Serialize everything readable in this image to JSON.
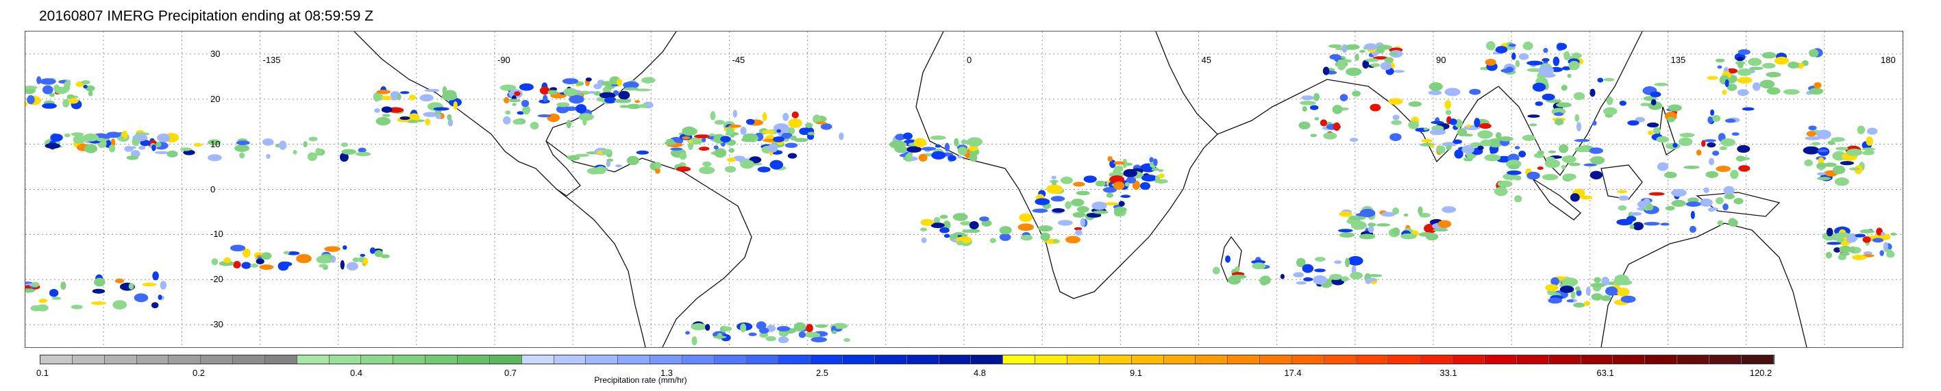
{
  "title": "20160807 IMERG Precipitation ending at 08:59:59 Z",
  "map": {
    "lon_labels": [
      "-135",
      "-90",
      "-45",
      "0",
      "45",
      "90",
      "135",
      "180"
    ],
    "lat_labels": [
      "30",
      "20",
      "10",
      "0",
      "-10",
      "-20",
      "-30"
    ],
    "lon_range": [
      -180,
      180
    ],
    "lat_range": [
      -35,
      35
    ],
    "grid": "dotted",
    "coastline_color": "#000000"
  },
  "colorbar": {
    "title": "Precipitation rate (mm/hr)",
    "tick_labels": [
      "0.1",
      "0.2",
      "0.4",
      "0.7",
      "1.3",
      "2.5",
      "4.8",
      "9.1",
      "17.4",
      "33.1",
      "63.1",
      "120.2"
    ],
    "colors": [
      "#c8c8c8",
      "#bcbcbc",
      "#b2b2b2",
      "#a8a8a8",
      "#9e9e9e",
      "#959595",
      "#8c8c8c",
      "#838383",
      "#a8e6a8",
      "#99e099",
      "#8cd98c",
      "#7fd17f",
      "#72c972",
      "#66c066",
      "#5ab85a",
      "#c8d8ff",
      "#b4c8ff",
      "#a0b8ff",
      "#8ca8ff",
      "#7898ff",
      "#6488ff",
      "#5078ff",
      "#3c68ff",
      "#1e50ff",
      "#0a3cf5",
      "#0032e6",
      "#0028d2",
      "#0020c0",
      "#0018aa",
      "#001496",
      "#ffff00",
      "#ffee00",
      "#ffdd00",
      "#ffcc00",
      "#ffbb00",
      "#ffaa00",
      "#ff9900",
      "#ff8800",
      "#ff7700",
      "#ff6600",
      "#ff5500",
      "#ff4400",
      "#ff3300",
      "#f52200",
      "#e61100",
      "#d60000",
      "#c40000",
      "#b00000",
      "#9e0000",
      "#8c0000",
      "#7a0000",
      "#680a0a",
      "#581010",
      "#4a1010"
    ]
  }
}
